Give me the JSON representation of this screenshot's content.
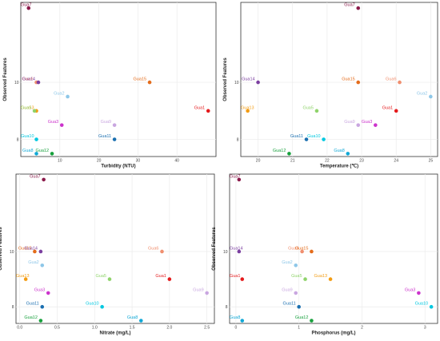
{
  "chart_data": [
    {
      "type": "scatter",
      "xlabel": "Turbidity (NTU)",
      "ylabel": "Observed Features",
      "xlim": [
        0,
        50
      ],
      "ylim": [
        7.4,
        12.8
      ],
      "xticks": [
        10,
        20,
        30,
        40
      ],
      "yticks": [
        8,
        10
      ],
      "points": [
        {
          "label": "Gua7",
          "x": 2.0,
          "y": 12.6,
          "color": "#8b1a4a"
        },
        {
          "label": "Gua6",
          "x": 4.0,
          "y": 10.0,
          "color": "#f08f6f"
        },
        {
          "label": "Gua14",
          "x": 4.5,
          "y": 10.0,
          "color": "#7b3fa0"
        },
        {
          "label": "Gua15",
          "x": 33.0,
          "y": 10.0,
          "color": "#e46c1b"
        },
        {
          "label": "Gua2",
          "x": 12.0,
          "y": 9.5,
          "color": "#8ec7e8"
        },
        {
          "label": "Gua13",
          "x": 4.0,
          "y": 9.0,
          "color": "#f39c12"
        },
        {
          "label": "Gua5",
          "x": 3.5,
          "y": 9.0,
          "color": "#8fd36b"
        },
        {
          "label": "Gua1",
          "x": 48.0,
          "y": 9.0,
          "color": "#e41a1c"
        },
        {
          "label": "Gua3",
          "x": 10.5,
          "y": 8.5,
          "color": "#cc33cc"
        },
        {
          "label": "Gua9",
          "x": 24.0,
          "y": 8.5,
          "color": "#c9a6e0"
        },
        {
          "label": "Gua10",
          "x": 4.0,
          "y": 8.0,
          "color": "#00c8e0"
        },
        {
          "label": "Gua11",
          "x": 24.0,
          "y": 8.0,
          "color": "#1a6fb0"
        },
        {
          "label": "Gua8",
          "x": 4.0,
          "y": 7.5,
          "color": "#10a8d6"
        },
        {
          "label": "Gua12",
          "x": 8.0,
          "y": 7.5,
          "color": "#17a03c"
        }
      ]
    },
    {
      "type": "scatter",
      "xlabel": "Temperature (℃)",
      "ylabel": "Observed Features",
      "xlim": [
        19.5,
        25.2
      ],
      "ylim": [
        7.4,
        12.8
      ],
      "xticks": [
        20,
        21,
        22,
        23,
        24,
        25
      ],
      "yticks": [
        8,
        10
      ],
      "points": [
        {
          "label": "Gua7",
          "x": 22.9,
          "y": 12.6,
          "color": "#8b1a4a"
        },
        {
          "label": "Gua14",
          "x": 20.0,
          "y": 10.0,
          "color": "#7b3fa0"
        },
        {
          "label": "Gua15",
          "x": 22.9,
          "y": 10.0,
          "color": "#e46c1b"
        },
        {
          "label": "Gua6",
          "x": 24.1,
          "y": 10.0,
          "color": "#f08f6f"
        },
        {
          "label": "Gua2",
          "x": 25.0,
          "y": 9.5,
          "color": "#8ec7e8"
        },
        {
          "label": "Gua13",
          "x": 19.7,
          "y": 9.0,
          "color": "#f39c12"
        },
        {
          "label": "Gua5",
          "x": 21.7,
          "y": 9.0,
          "color": "#8fd36b"
        },
        {
          "label": "Gua1",
          "x": 24.0,
          "y": 9.0,
          "color": "#e41a1c"
        },
        {
          "label": "Gua9",
          "x": 22.9,
          "y": 8.5,
          "color": "#c9a6e0"
        },
        {
          "label": "Gua3",
          "x": 23.4,
          "y": 8.5,
          "color": "#cc33cc"
        },
        {
          "label": "Gua11",
          "x": 21.4,
          "y": 8.0,
          "color": "#1a6fb0"
        },
        {
          "label": "Gua10",
          "x": 21.9,
          "y": 8.0,
          "color": "#00c8e0"
        },
        {
          "label": "Gua8",
          "x": 22.6,
          "y": 7.5,
          "color": "#10a8d6"
        },
        {
          "label": "Gua12",
          "x": 20.9,
          "y": 7.5,
          "color": "#17a03c"
        }
      ]
    },
    {
      "type": "scatter",
      "xlabel": "Nitrate (mg/L)",
      "ylabel": "Observed Features",
      "xlim": [
        -0.05,
        2.6
      ],
      "ylim": [
        7.4,
        12.8
      ],
      "xticks": [
        0.0,
        0.5,
        1.0,
        1.5,
        2.0,
        2.5
      ],
      "yticks": [
        8,
        10
      ],
      "points": [
        {
          "label": "Gua7",
          "x": 0.32,
          "y": 12.6,
          "color": "#8b1a4a"
        },
        {
          "label": "Gua15",
          "x": 0.2,
          "y": 10.0,
          "color": "#e46c1b"
        },
        {
          "label": "Gua14",
          "x": 0.28,
          "y": 10.0,
          "color": "#7b3fa0"
        },
        {
          "label": "Gua6",
          "x": 1.9,
          "y": 10.0,
          "color": "#f08f6f"
        },
        {
          "label": "Gua2",
          "x": 0.3,
          "y": 9.5,
          "color": "#8ec7e8"
        },
        {
          "label": "Gua13",
          "x": 0.08,
          "y": 9.0,
          "color": "#f39c12"
        },
        {
          "label": "Gua5",
          "x": 1.2,
          "y": 9.0,
          "color": "#8fd36b"
        },
        {
          "label": "Gua1",
          "x": 2.0,
          "y": 9.0,
          "color": "#e41a1c"
        },
        {
          "label": "Gua3",
          "x": 0.38,
          "y": 8.5,
          "color": "#cc33cc"
        },
        {
          "label": "Gua9",
          "x": 2.5,
          "y": 8.5,
          "color": "#c9a6e0"
        },
        {
          "label": "Gua11",
          "x": 0.3,
          "y": 8.0,
          "color": "#1a6fb0"
        },
        {
          "label": "Gua10",
          "x": 1.1,
          "y": 8.0,
          "color": "#00c8e0"
        },
        {
          "label": "Gua8",
          "x": 1.62,
          "y": 7.5,
          "color": "#10a8d6"
        },
        {
          "label": "Gua12",
          "x": 0.28,
          "y": 7.5,
          "color": "#17a03c"
        }
      ]
    },
    {
      "type": "scatter",
      "xlabel": "Phosphorus (mg/L)",
      "ylabel": "Observed Features",
      "xlim": [
        -0.1,
        3.2
      ],
      "ylim": [
        7.4,
        12.8
      ],
      "xticks": [
        0,
        1,
        2,
        3
      ],
      "yticks": [
        8,
        10
      ],
      "points": [
        {
          "label": "Gua7",
          "x": 0.05,
          "y": 12.6,
          "color": "#8b1a4a"
        },
        {
          "label": "Gua14",
          "x": 0.05,
          "y": 10.0,
          "color": "#7b3fa0"
        },
        {
          "label": "Gua6",
          "x": 1.05,
          "y": 10.0,
          "color": "#f08f6f"
        },
        {
          "label": "Gua15",
          "x": 1.2,
          "y": 10.0,
          "color": "#e46c1b"
        },
        {
          "label": "Gua2",
          "x": 0.95,
          "y": 9.5,
          "color": "#8ec7e8"
        },
        {
          "label": "Gua1",
          "x": 0.1,
          "y": 9.0,
          "color": "#e41a1c"
        },
        {
          "label": "Gua5",
          "x": 1.1,
          "y": 9.0,
          "color": "#8fd36b"
        },
        {
          "label": "Gua13",
          "x": 1.5,
          "y": 9.0,
          "color": "#f39c12"
        },
        {
          "label": "Gua9",
          "x": 0.95,
          "y": 8.5,
          "color": "#c9a6e0"
        },
        {
          "label": "Gua3",
          "x": 2.9,
          "y": 8.5,
          "color": "#cc33cc"
        },
        {
          "label": "Gua11",
          "x": 1.0,
          "y": 8.0,
          "color": "#1a6fb0"
        },
        {
          "label": "Gua10",
          "x": 3.1,
          "y": 8.0,
          "color": "#00c8e0"
        },
        {
          "label": "Gua8",
          "x": 0.1,
          "y": 7.5,
          "color": "#10a8d6"
        },
        {
          "label": "Gua12",
          "x": 1.2,
          "y": 7.5,
          "color": "#17a03c"
        }
      ]
    }
  ]
}
